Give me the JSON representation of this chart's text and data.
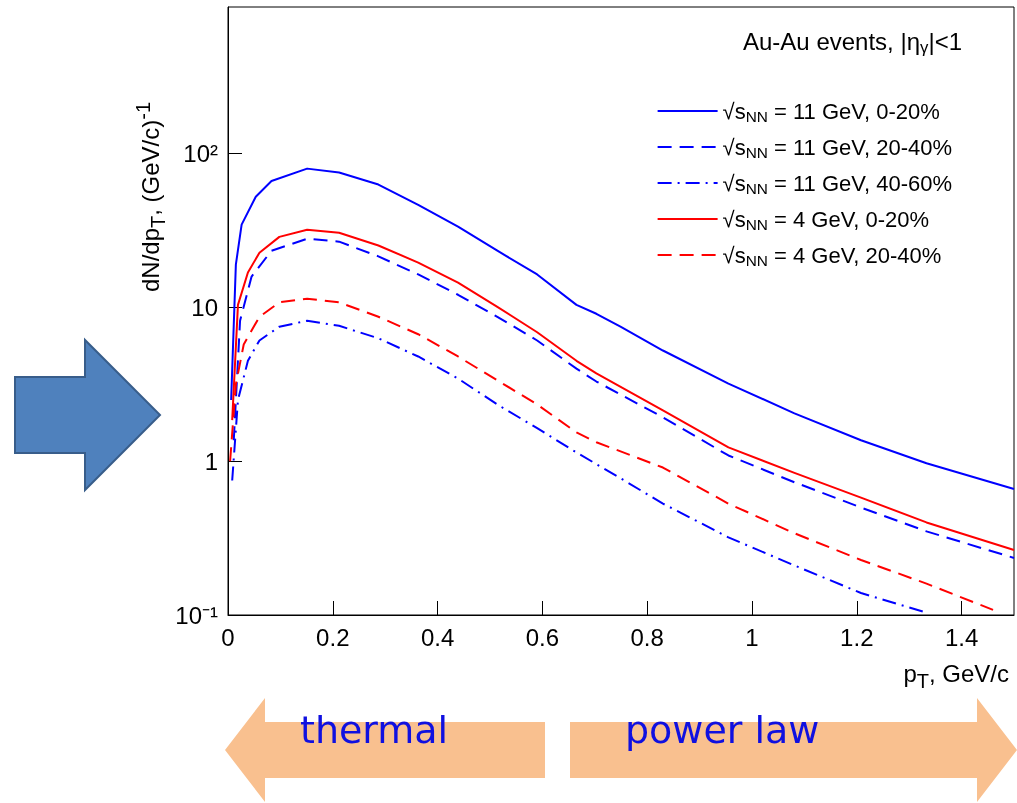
{
  "chart_data": {
    "type": "line",
    "xlabel": "p$_{T}$, GeV/c",
    "ylabel": "dN/dp$_{T}$, (GeV/c)$^{-1}$",
    "legend_title": "Au-Au events, |η$_{γ}$|<1",
    "log": "y",
    "xlim": [
      0,
      1.5
    ],
    "ylim": [
      0.1,
      900
    ],
    "xticks": [
      0,
      0.2,
      0.4,
      0.6,
      0.8,
      1,
      1.2,
      1.4
    ],
    "yticks": [
      {
        "value": 0.1,
        "label": "10⁻¹"
      },
      1,
      10,
      {
        "value": 100,
        "label": "10²"
      }
    ],
    "grid": false,
    "legend": "top right",
    "marker": "none",
    "series": [
      {
        "name": "√s$_{NN}$ = 11 GeV, 0-20%",
        "color": "#0000ff",
        "line_style": "solid",
        "x": [
          0.006,
          0.015,
          0.026,
          0.053,
          0.083,
          0.151,
          0.212,
          0.287,
          0.363,
          0.439,
          0.514,
          0.59,
          0.665,
          0.703,
          0.749,
          0.83,
          0.955,
          1.081,
          1.208,
          1.333,
          1.5
        ],
        "values": [
          2.5,
          19,
          34.6,
          52.5,
          66.5,
          80,
          75.5,
          63,
          46.5,
          33.6,
          23.4,
          16.4,
          10.4,
          9.1,
          7.5,
          5.25,
          3.2,
          2.05,
          1.37,
          0.97,
          0.66
        ]
      },
      {
        "name": "√s$_{NN}$ = 11 GeV, 20-40%",
        "color": "#0000ff",
        "line_style": "dashed",
        "x": [
          0.011,
          0.023,
          0.045,
          0.083,
          0.151,
          0.212,
          0.287,
          0.363,
          0.439,
          0.514,
          0.59,
          0.665,
          0.703,
          0.83,
          0.955,
          1.081,
          1.208,
          1.333,
          1.5
        ],
        "values": [
          1.37,
          8.2,
          15.9,
          23.4,
          28,
          26.8,
          21.5,
          16.4,
          12.1,
          8.7,
          6.1,
          4.0,
          3.3,
          1.93,
          1.09,
          0.73,
          0.5,
          0.35,
          0.235
        ]
      },
      {
        "name": "√s$_{NN}$ = 11 GeV, 40-60%",
        "color": "#0000ff",
        "line_style": "dashdot",
        "x": [
          0.008,
          0.019,
          0.038,
          0.06,
          0.098,
          0.151,
          0.212,
          0.287,
          0.363,
          0.439,
          0.514,
          0.59,
          0.665,
          0.745,
          0.83,
          0.955,
          1.081,
          1.208,
          1.327
        ],
        "values": [
          0.75,
          2.5,
          4.5,
          6.1,
          7.5,
          8.2,
          7.6,
          6.3,
          4.8,
          3.45,
          2.34,
          1.64,
          1.14,
          0.79,
          0.53,
          0.32,
          0.21,
          0.139,
          0.105
        ]
      },
      {
        "name": "√s$_{NN}$ = 4 GeV, 0-20%",
        "color": "#ff0000",
        "line_style": "solid",
        "x": [
          0.008,
          0.019,
          0.038,
          0.06,
          0.098,
          0.151,
          0.212,
          0.287,
          0.363,
          0.439,
          0.514,
          0.59,
          0.665,
          0.703,
          0.83,
          0.955,
          1.081,
          1.208,
          1.333,
          1.5
        ],
        "values": [
          1.85,
          10.4,
          16.9,
          22.7,
          28.8,
          32,
          30.6,
          25.3,
          19.6,
          14.5,
          10.1,
          6.9,
          4.5,
          3.73,
          2.14,
          1.23,
          0.84,
          0.58,
          0.4,
          0.265
        ]
      },
      {
        "name": "√s$_{NN}$ = 4 GeV, 20-40%",
        "color": "#ff0000",
        "line_style": "dashed",
        "x": [
          0.004,
          0.015,
          0.03,
          0.06,
          0.098,
          0.151,
          0.212,
          0.287,
          0.363,
          0.439,
          0.514,
          0.59,
          0.665,
          0.703,
          0.83,
          0.955,
          1.081,
          1.208,
          1.333,
          1.46
        ],
        "values": [
          1.0,
          3.16,
          5.75,
          8.7,
          10.8,
          11.4,
          10.8,
          8.7,
          6.7,
          4.8,
          3.36,
          2.34,
          1.54,
          1.33,
          0.91,
          0.53,
          0.34,
          0.228,
          0.16,
          0.108
        ]
      }
    ],
    "annotations": [
      "thermal",
      "power law"
    ]
  }
}
